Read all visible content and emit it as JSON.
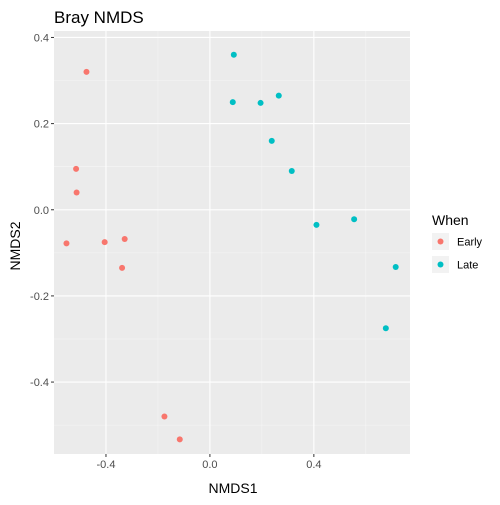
{
  "chart_data": {
    "type": "scatter",
    "title": "Bray NMDS",
    "xlabel": "NMDS1",
    "ylabel": "NMDS2",
    "xlim": [
      -0.6,
      0.77
    ],
    "ylim": [
      -0.567,
      0.415
    ],
    "x_ticks": [
      -0.4,
      0.0,
      0.4
    ],
    "x_tick_labels": [
      "-0.4",
      "0.0",
      "0.4"
    ],
    "y_ticks": [
      0.4,
      0.2,
      0.0,
      -0.2,
      -0.4
    ],
    "y_tick_labels": [
      "0.4",
      "0.2",
      "0.0",
      "-0.2",
      "-0.4"
    ],
    "grid": true,
    "legend": {
      "title": "When",
      "position": "right"
    },
    "series": [
      {
        "name": "Early",
        "color": "#F8766D",
        "points": [
          {
            "x": -0.475,
            "y": 0.32
          },
          {
            "x": -0.515,
            "y": 0.095
          },
          {
            "x": -0.513,
            "y": 0.04
          },
          {
            "x": -0.552,
            "y": -0.078
          },
          {
            "x": -0.405,
            "y": -0.075
          },
          {
            "x": -0.328,
            "y": -0.068
          },
          {
            "x": -0.338,
            "y": -0.135
          },
          {
            "x": -0.175,
            "y": -0.48
          },
          {
            "x": -0.116,
            "y": -0.533
          }
        ]
      },
      {
        "name": "Late",
        "color": "#00BFC4",
        "points": [
          {
            "x": 0.092,
            "y": 0.36
          },
          {
            "x": 0.088,
            "y": 0.25
          },
          {
            "x": 0.195,
            "y": 0.248
          },
          {
            "x": 0.265,
            "y": 0.265
          },
          {
            "x": 0.238,
            "y": 0.16
          },
          {
            "x": 0.315,
            "y": 0.09
          },
          {
            "x": 0.41,
            "y": -0.035
          },
          {
            "x": 0.555,
            "y": -0.022
          },
          {
            "x": 0.715,
            "y": -0.133
          },
          {
            "x": 0.677,
            "y": -0.275
          }
        ]
      }
    ]
  },
  "colors": {
    "panel_background": "#EBEBEB",
    "grid_major": "#FFFFFF"
  }
}
